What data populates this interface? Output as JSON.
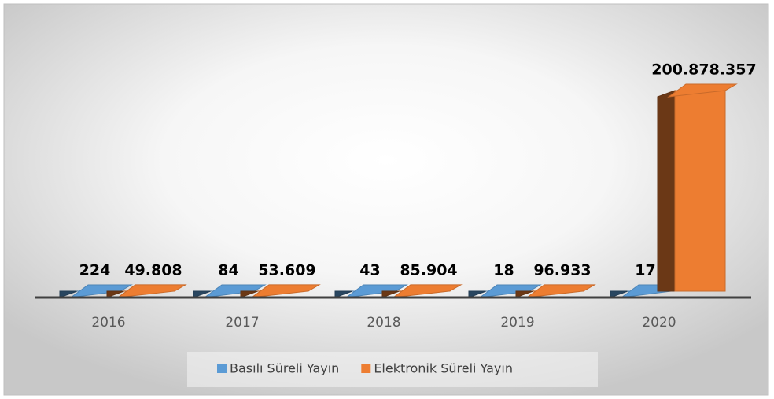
{
  "chart_data": {
    "type": "bar3d",
    "categories": [
      "2016",
      "2017",
      "2018",
      "2019",
      "2020"
    ],
    "series": [
      {
        "name": "Basılı Süreli Yayın",
        "color": "#5b9bd5",
        "values": [
          224,
          84,
          43,
          18,
          17
        ]
      },
      {
        "name": "Elektronik Süreli Yayın",
        "color": "#ed7d31",
        "values": [
          49808,
          53609,
          85904,
          96933,
          200878357
        ],
        "value_labels": [
          "49.808",
          "53.609",
          "85.904",
          "96.933",
          "200.878.357"
        ]
      }
    ],
    "legend": "bottom"
  }
}
